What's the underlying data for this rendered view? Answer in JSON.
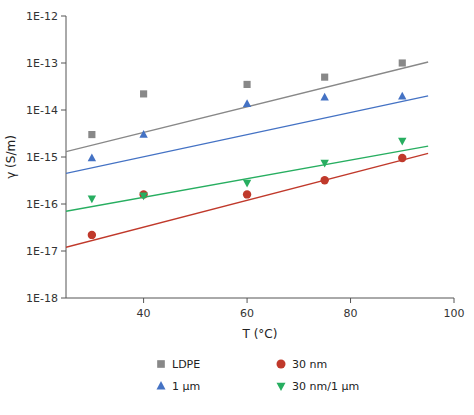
{
  "chart_data": {
    "type": "scatter",
    "title": "",
    "xlabel": "T (°C)",
    "ylabel": "γ (S/m)",
    "log": "y",
    "grid": false,
    "legend": "bottom",
    "xlim": [
      25,
      100
    ],
    "xticks": [
      40,
      60,
      80,
      100
    ],
    "ylim": [
      1e-18,
      1e-12
    ],
    "yticks": [
      {
        "value": 1e-18,
        "label": "1E-18"
      },
      {
        "value": 1e-17,
        "label": "1E-17"
      },
      {
        "value": 1e-16,
        "label": "1E-16"
      },
      {
        "value": 1e-15,
        "label": "1E-15"
      },
      {
        "value": 1e-14,
        "label": "1E-14"
      },
      {
        "value": 1e-13,
        "label": "1E-13"
      },
      {
        "value": 1e-12,
        "label": "1E-12"
      }
    ],
    "series": [
      {
        "name": "LDPE",
        "color": "#888888",
        "marker": "square",
        "x": [
          30,
          40,
          60,
          75,
          90
        ],
        "values": [
          3e-15,
          2.2e-14,
          3.5e-14,
          5e-14,
          1e-13
        ],
        "fit_x": [
          25,
          95
        ],
        "fit_y": [
          1.3e-15,
          1.05e-13
        ]
      },
      {
        "name": "1 μm",
        "color": "#4472C4",
        "marker": "triangle-up",
        "x": [
          30,
          40,
          60,
          75,
          90
        ],
        "values": [
          9.5e-16,
          3e-15,
          1.35e-14,
          1.85e-14,
          1.95e-14
        ],
        "fit_x": [
          25,
          95
        ],
        "fit_y": [
          4.5e-16,
          2e-14
        ]
      },
      {
        "name": "30 nm",
        "color": "#C0392B",
        "marker": "circle",
        "x": [
          30,
          40,
          60,
          75,
          90
        ],
        "values": [
          2.2e-17,
          1.6e-16,
          1.6e-16,
          3.2e-16,
          9.5e-16
        ],
        "fit_x": [
          25,
          95
        ],
        "fit_y": [
          1.2e-17,
          1.2e-15
        ]
      },
      {
        "name": "30 nm/1 μm",
        "color": "#27AE60",
        "marker": "triangle-down",
        "x": [
          30,
          40,
          60,
          75,
          90
        ],
        "values": [
          1.3e-16,
          1.5e-16,
          2.8e-16,
          7.5e-16,
          2.2e-15
        ],
        "fit_x": [
          25,
          95
        ],
        "fit_y": [
          7e-17,
          1.7e-15
        ]
      }
    ]
  }
}
